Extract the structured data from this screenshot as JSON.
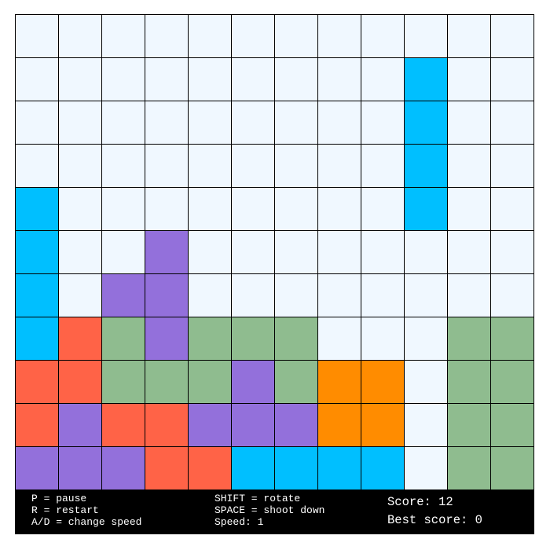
{
  "colors": {
    "E": "#f0f8ff",
    "C": "#00bfff",
    "P": "#9370db",
    "R": "#ff6347",
    "G": "#8fbc8f",
    "O": "#ff8c00"
  },
  "board": [
    "EEEEEEEEEEEE",
    "EEEEEEEEECEE",
    "EEEEEEEEECEE",
    "EEEEEEEEECEE",
    "CEEEEEEEECEE",
    "CEEPEEEEEEEE",
    "CEPPEEEEEEEE",
    "CRGPGGGEEEGG",
    "RRGGGPGOOEGG",
    "RPRRPPPOOEGG",
    "PPPRRCCCCEGG"
  ],
  "controls": {
    "pause": "P = pause",
    "restart": "R = restart",
    "speed_keys": "A/D = change speed",
    "rotate": "SHIFT = rotate",
    "shoot": "SPACE = shoot down",
    "speed": "Speed: 1"
  },
  "score": {
    "score": "Score: 12",
    "best": "Best score: 0"
  }
}
